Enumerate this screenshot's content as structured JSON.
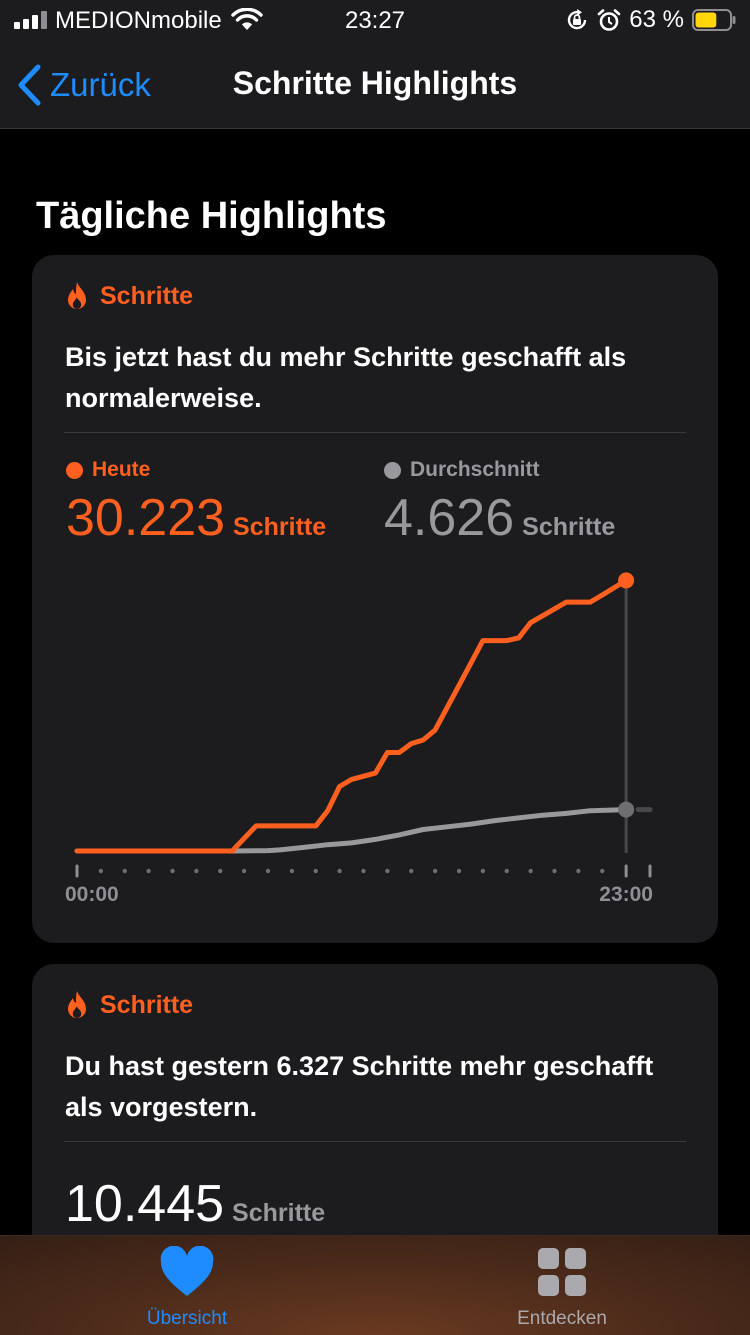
{
  "status_bar": {
    "carrier": "MEDIONmobile",
    "time": "23:27",
    "battery_percent": "63 %",
    "battery_level": 0.63
  },
  "nav": {
    "back_label": "Zurück",
    "title": "Schritte Highlights"
  },
  "section_title": "Tägliche Highlights",
  "card1": {
    "category": "Schritte",
    "message": "Bis jetzt hast du mehr Schritte geschafft als normalerweise.",
    "today": {
      "label": "Heute",
      "value": "30.223",
      "unit": "Schritte"
    },
    "average": {
      "label": "Durchschnitt",
      "value": "4.626",
      "unit": "Schritte"
    }
  },
  "card2": {
    "category": "Schritte",
    "message": "Du hast gestern 6.327 Schritte mehr geschafft als vorgestern.",
    "value": "10.445",
    "unit": "Schritte"
  },
  "tabs": [
    {
      "label": "Übersicht",
      "active": true
    },
    {
      "label": "Entdecken",
      "active": false
    }
  ],
  "colors": {
    "accent": "#ff5f1f",
    "link": "#1e8cff",
    "average": "#98989d"
  },
  "chart_data": {
    "type": "line",
    "x_tick_labels": [
      "00:00",
      "23:00"
    ],
    "xlim": [
      0,
      24
    ],
    "ylim": [
      0,
      31500
    ],
    "series": [
      {
        "name": "Heute",
        "x": [
          0,
          6.5,
          7.5,
          8,
          9,
          10,
          10.5,
          11,
          11.5,
          12.5,
          13,
          13.5,
          14,
          14.5,
          15,
          16,
          17,
          17.5,
          18,
          18.5,
          19,
          20.5,
          21.5,
          22,
          23
        ],
        "y": [
          0,
          0,
          2800,
          2800,
          2800,
          2800,
          4500,
          7200,
          8000,
          8700,
          11000,
          11000,
          12000,
          12400,
          13500,
          18500,
          23500,
          23500,
          23500,
          23800,
          25500,
          27800,
          27800,
          28600,
          30223
        ]
      },
      {
        "name": "Durchschnitt",
        "x": [
          0,
          6.5,
          8,
          8.5,
          9.5,
          10.5,
          11.5,
          12.5,
          13.5,
          14.5,
          15.5,
          16.5,
          17.5,
          18.5,
          19.5,
          20.5,
          21.5,
          23
        ],
        "y": [
          0,
          0,
          40,
          120,
          400,
          700,
          900,
          1300,
          1800,
          2400,
          2700,
          3000,
          3400,
          3700,
          4000,
          4200,
          4500,
          4626
        ]
      }
    ]
  }
}
